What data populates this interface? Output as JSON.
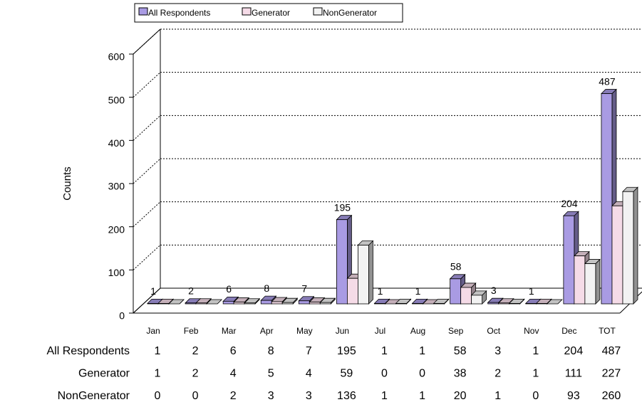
{
  "chart_data": {
    "type": "bar3d",
    "y_label": "Counts",
    "categories": [
      "Jan",
      "Feb",
      "Mar",
      "Apr",
      "May",
      "Jun",
      "Jul",
      "Aug",
      "Sep",
      "Oct",
      "Nov",
      "Dec",
      "TOT"
    ],
    "series": [
      {
        "name": "All Respondents",
        "color": "#a99be3",
        "values": [
          1,
          2,
          6,
          8,
          7,
          195,
          1,
          1,
          58,
          3,
          1,
          204,
          487
        ]
      },
      {
        "name": "Generator",
        "color": "#f5dbe7",
        "values": [
          1,
          2,
          4,
          5,
          4,
          59,
          0,
          0,
          38,
          2,
          1,
          111,
          227
        ]
      },
      {
        "name": "NonGenerator",
        "color": "#f2f2f2",
        "values": [
          0,
          0,
          2,
          3,
          3,
          136,
          1,
          1,
          20,
          1,
          0,
          93,
          260
        ]
      }
    ],
    "labeled_series": 0,
    "ylim": [
      0,
      600
    ],
    "yticks": [
      0,
      100,
      200,
      300,
      400,
      500,
      600
    ],
    "grid": true,
    "legend": "top"
  }
}
